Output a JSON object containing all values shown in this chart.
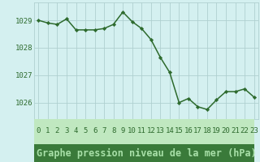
{
  "x": [
    0,
    1,
    2,
    3,
    4,
    5,
    6,
    7,
    8,
    9,
    10,
    11,
    12,
    13,
    14,
    15,
    16,
    17,
    18,
    19,
    20,
    21,
    22,
    23
  ],
  "y": [
    1029.0,
    1028.9,
    1028.85,
    1029.05,
    1028.65,
    1028.65,
    1028.65,
    1028.7,
    1028.85,
    1029.3,
    1028.95,
    1028.7,
    1028.3,
    1027.65,
    1027.1,
    1026.0,
    1026.15,
    1025.85,
    1025.75,
    1026.1,
    1026.4,
    1026.4,
    1026.5,
    1026.2
  ],
  "line_color": "#2d6a2d",
  "marker": "D",
  "markersize": 2.2,
  "linewidth": 1.1,
  "xtick_labels": [
    "0",
    "1",
    "2",
    "3",
    "4",
    "5",
    "6",
    "7",
    "8",
    "9",
    "10",
    "11",
    "12",
    "13",
    "14",
    "15",
    "16",
    "17",
    "18",
    "19",
    "20",
    "21",
    "22",
    "23"
  ],
  "ytick_labels": [
    "1026",
    "1027",
    "1028",
    "1029"
  ],
  "ytick_values": [
    1026,
    1027,
    1028,
    1029
  ],
  "ylim": [
    1025.4,
    1029.65
  ],
  "xlim": [
    -0.5,
    23.5
  ],
  "bg_color": "#d4f0f0",
  "grid_color": "#b0d0d0",
  "tick_color": "#2d6a2d",
  "tick_fontsize": 6.5,
  "banner_bg": "#3a7a3a",
  "banner_text": "#a8e0a8",
  "banner_label": "Graphe pression niveau de la mer (hPa)",
  "banner_fontsize": 8.5,
  "xtick_row_text": "#2d6a2d",
  "xtick_row_bg": "#c0e8c0"
}
